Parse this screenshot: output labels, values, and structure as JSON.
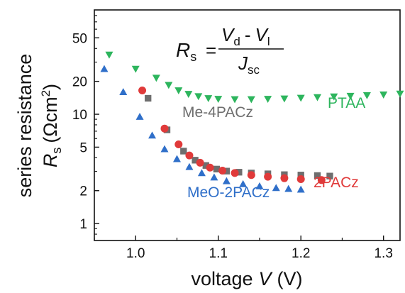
{
  "chart_data": {
    "type": "scatter",
    "xlabel": "voltage",
    "xlabel_var": "V",
    "xlabel_unit": "(V)",
    "ylabel_line1": "series resistance",
    "ylabel_var": "R",
    "ylabel_sub": "s",
    "ylabel_unit": "(Ωcm",
    "ylabel_unit_sup": "2",
    "ylabel_unit_end": ")",
    "x_scale": "linear",
    "y_scale": "log",
    "xlim": [
      0.95,
      1.32
    ],
    "ylim": [
      0.7,
      90
    ],
    "x_ticks": [
      1.0,
      1.1,
      1.2,
      1.3
    ],
    "x_tick_labels": [
      "1.0",
      "1.1",
      "1.2",
      "1.3"
    ],
    "y_ticks": [
      1,
      2,
      5,
      10,
      20,
      50
    ],
    "y_tick_labels": [
      "1",
      "2",
      "5",
      "10",
      "20",
      "50"
    ],
    "grid": false,
    "legend": "inline labels",
    "equation": {
      "lhs": "R",
      "lhs_sub": "s",
      "eq_sign": "=",
      "num_a": "V",
      "num_a_sub": "d",
      "num_minus": "-",
      "num_b": "V",
      "num_b_sub": "l",
      "den": "J",
      "den_sub": "sc"
    },
    "series": [
      {
        "name": "PTAA",
        "color": "#2db55d",
        "marker": "triangle-down",
        "x": [
          0.968,
          1.0,
          1.025,
          1.04,
          1.052,
          1.064,
          1.076,
          1.088,
          1.1,
          1.12,
          1.14,
          1.16,
          1.18,
          1.2,
          1.22,
          1.24,
          1.26,
          1.28,
          1.3,
          1.32
        ],
        "y": [
          35,
          26,
          21.5,
          18.5,
          16.5,
          15.3,
          14.6,
          14.0,
          13.8,
          13.7,
          13.7,
          13.8,
          13.9,
          14.1,
          14.3,
          14.5,
          14.7,
          14.9,
          15.1,
          15.4
        ]
      },
      {
        "name": "Me-4PACz",
        "color": "#6e6e6e",
        "marker": "square",
        "x": [
          1.015,
          1.038,
          1.058,
          1.072,
          1.085,
          1.098,
          1.11,
          1.125,
          1.14,
          1.16,
          1.18,
          1.2,
          1.22,
          1.235
        ],
        "y": [
          14,
          7.2,
          4.6,
          3.8,
          3.4,
          3.15,
          3.02,
          2.95,
          2.9,
          2.85,
          2.8,
          2.78,
          2.75,
          2.72
        ]
      },
      {
        "name": "2PACz",
        "color": "#e03a3a",
        "marker": "circle",
        "x": [
          1.008,
          1.035,
          1.052,
          1.065,
          1.078,
          1.09,
          1.105,
          1.12,
          1.14,
          1.16,
          1.18,
          1.2,
          1.225
        ],
        "y": [
          16.5,
          7.4,
          5.3,
          4.2,
          3.6,
          3.25,
          3.05,
          2.9,
          2.78,
          2.68,
          2.6,
          2.55,
          2.5
        ]
      },
      {
        "name": "MeO-2PACz",
        "color": "#2f6fc9",
        "marker": "triangle-up",
        "x": [
          0.962,
          0.985,
          1.005,
          1.02,
          1.035,
          1.05,
          1.065,
          1.08,
          1.095,
          1.11,
          1.13,
          1.15,
          1.17,
          1.185,
          1.2
        ],
        "y": [
          26,
          16,
          9.5,
          6.4,
          4.8,
          3.9,
          3.3,
          2.9,
          2.65,
          2.45,
          2.3,
          2.2,
          2.12,
          2.08,
          2.05
        ]
      }
    ]
  }
}
